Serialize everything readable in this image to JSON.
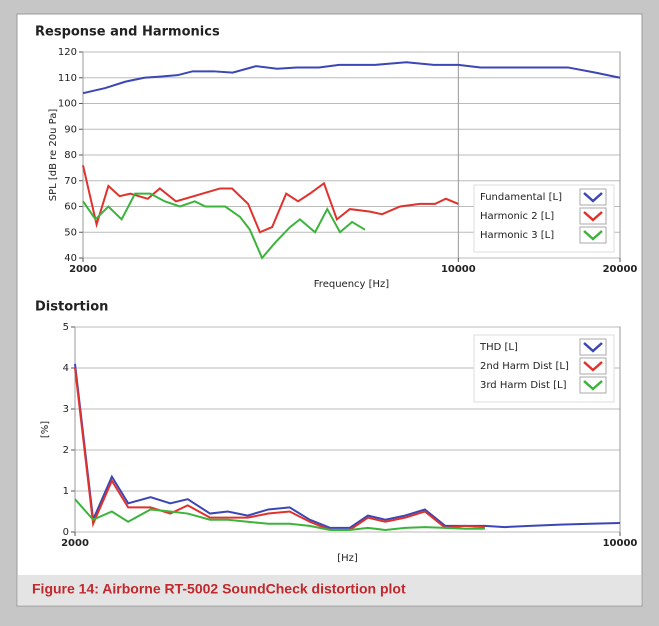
{
  "chart_data": [
    {
      "type": "line",
      "title": "Response and Harmonics",
      "x_label": "Frequency [Hz]",
      "y_label": "SPL [dB re 20u Pa]",
      "xscale": "log",
      "xlim": [
        2000,
        20000
      ],
      "xticks": [
        2000,
        10000,
        20000
      ],
      "ylim": [
        40,
        120
      ],
      "yticks": [
        40,
        50,
        60,
        70,
        80,
        90,
        100,
        110,
        120
      ],
      "grid": true,
      "legend": "lower right",
      "series": [
        {
          "name": "Fundamental [L]",
          "color": "#3c46b4",
          "x": [
            2000,
            2200,
            2400,
            2600,
            2800,
            3000,
            3200,
            3500,
            3800,
            4200,
            4600,
            5000,
            5500,
            6000,
            7000,
            8000,
            9000,
            10000,
            11000,
            12000,
            14000,
            16000,
            18000,
            20000
          ],
          "values": [
            104,
            106,
            108.5,
            110,
            110.5,
            111,
            112.5,
            112.5,
            112,
            114.5,
            113.5,
            114,
            114,
            115,
            115,
            116,
            115,
            115,
            114,
            114,
            114,
            114,
            112,
            110
          ]
        },
        {
          "name": "Harmonic 2 [L]",
          "color": "#e0322d",
          "x": [
            2000,
            2120,
            2230,
            2340,
            2450,
            2640,
            2780,
            2980,
            3600,
            3790,
            4060,
            4270,
            4500,
            4780,
            5030,
            5290,
            5620,
            5940,
            6280,
            6850,
            7210,
            7790,
            8480,
            9050,
            9480,
            10000
          ],
          "values": [
            76,
            53,
            68,
            64,
            65,
            63,
            67,
            62,
            67,
            67,
            61,
            50,
            52,
            65,
            62,
            65,
            69,
            55,
            59,
            58,
            57,
            60,
            61,
            61,
            63,
            61
          ]
        },
        {
          "name": "Harmonic 3 [L]",
          "color": "#3cb43c",
          "x": [
            2000,
            2110,
            2230,
            2360,
            2500,
            2670,
            2840,
            3030,
            3230,
            3380,
            3680,
            3920,
            4090,
            4310,
            4560,
            4860,
            5070,
            5410,
            5700,
            6020,
            6340,
            6700
          ],
          "values": [
            62,
            55,
            60,
            55,
            65,
            65,
            62,
            60,
            62,
            60,
            60,
            56,
            51,
            40,
            46,
            52,
            55,
            50,
            59,
            50,
            54,
            51
          ]
        }
      ]
    },
    {
      "type": "line",
      "title": "Distortion",
      "x_label": "[Hz]",
      "y_label": "[%]",
      "xscale": "log",
      "xlim": [
        2000,
        10000
      ],
      "xticks": [
        2000,
        10000
      ],
      "ylim": [
        0,
        5
      ],
      "yticks": [
        0,
        1,
        2,
        3,
        4,
        5
      ],
      "grid": true,
      "legend": "upper right",
      "x": [
        2000,
        2110,
        2230,
        2340,
        2500,
        2650,
        2790,
        2980,
        3140,
        3330,
        3540,
        3770,
        4000,
        4250,
        4500,
        4750,
        5000,
        5300,
        5620,
        5970,
        6330,
        6710,
        7120,
        7670,
        8380,
        9160,
        10000
      ],
      "series": [
        {
          "name": "THD [L]",
          "color": "#3c46b4",
          "values": [
            4.1,
            0.3,
            1.35,
            0.7,
            0.85,
            0.7,
            0.8,
            0.45,
            0.5,
            0.4,
            0.55,
            0.6,
            0.3,
            0.1,
            0.1,
            0.4,
            0.3,
            0.4,
            0.55,
            0.15,
            0.15,
            0.15,
            0.12,
            0.15,
            0.18,
            0.2,
            0.22
          ]
        },
        {
          "name": "2nd Harm Dist [L]",
          "color": "#e0322d",
          "values": [
            4.0,
            0.2,
            1.25,
            0.6,
            0.6,
            0.45,
            0.65,
            0.35,
            0.35,
            0.35,
            0.45,
            0.5,
            0.25,
            0.05,
            0.05,
            0.35,
            0.25,
            0.35,
            0.5,
            0.1,
            0.15,
            0.12,
            null,
            null,
            null,
            null,
            null
          ]
        },
        {
          "name": "3rd Harm Dist [L]",
          "color": "#3cb43c",
          "values": [
            0.8,
            0.3,
            0.5,
            0.25,
            0.55,
            0.5,
            0.45,
            0.3,
            0.3,
            0.25,
            0.2,
            0.2,
            0.15,
            0.05,
            0.05,
            0.1,
            0.05,
            0.1,
            0.12,
            0.1,
            0.08,
            0.08,
            null,
            null,
            null,
            null,
            null
          ]
        }
      ]
    }
  ],
  "caption": "Figure 14: Airborne RT-5002 SoundCheck distortion plot"
}
